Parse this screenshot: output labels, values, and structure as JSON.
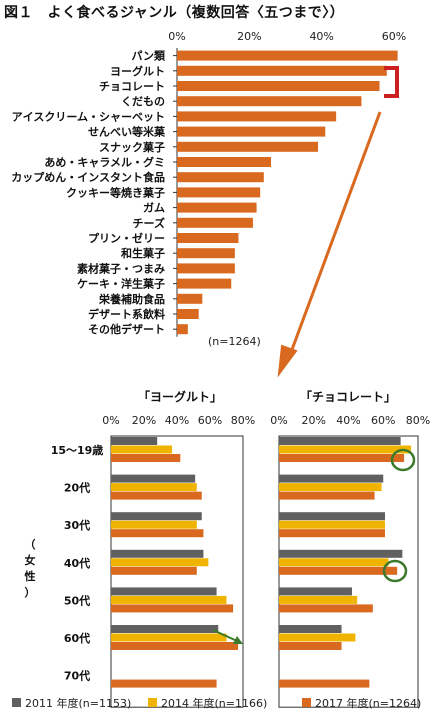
{
  "title": "図１　よく食べるジャンル（複数回答〈五つまで〉）",
  "colors": {
    "gray": "#606060",
    "yellow": "#f0b400",
    "orange": "#d9691e",
    "circle": "#3a7a2a",
    "arrow": "#d9691e",
    "bracket": "#cc2020"
  },
  "chart_data": [
    {
      "type": "bar",
      "orientation": "horizontal",
      "categories": [
        "パン類",
        "ヨーグルト",
        "チョコレート",
        "くだもの",
        "アイスクリーム・シャーベット",
        "せんべい等米菓",
        "スナック菓子",
        "あめ・キャラメル・グミ",
        "カップめん・インスタント食品",
        "クッキー等焼き菓子",
        "ガム",
        "チーズ",
        "プリン・ゼリー",
        "和生菓子",
        "素材菓子・つまみ",
        "ケーキ・洋生菓子",
        "栄養補助食品",
        "デザート系飲料",
        "その他デザート"
      ],
      "values": [
        61,
        58,
        56,
        51,
        44,
        41,
        39,
        26,
        24,
        23,
        22,
        21,
        17,
        16,
        16,
        15,
        7,
        6,
        3
      ],
      "xlim": [
        0,
        60
      ],
      "xticks": [
        "0%",
        "20%",
        "40%",
        "60%"
      ],
      "note": "(n=1264)"
    },
    {
      "type": "bar",
      "orientation": "horizontal",
      "title": "「ヨーグルト」",
      "categories": [
        "15～19歳",
        "20代",
        "30代",
        "40代",
        "50代",
        "60代",
        "70代"
      ],
      "xlim": [
        0,
        80
      ],
      "xticks": [
        "0%",
        "20%",
        "40%",
        "60%",
        "80%"
      ],
      "series": [
        {
          "name": "2011 年度(n=1153)",
          "values": [
            28,
            51,
            55,
            56,
            64,
            65,
            null
          ]
        },
        {
          "name": "2014 年度(n=1166)",
          "values": [
            37,
            52,
            52,
            59,
            70,
            70,
            null
          ]
        },
        {
          "name": "2017 年度(n=1264)",
          "values": [
            42,
            55,
            56,
            52,
            74,
            77,
            64
          ]
        }
      ]
    },
    {
      "type": "bar",
      "orientation": "horizontal",
      "title": "「チョコレート」",
      "categories": [
        "15～19歳",
        "20代",
        "30代",
        "40代",
        "50代",
        "60代",
        "70代"
      ],
      "xlim": [
        0,
        80
      ],
      "xticks": [
        "0%",
        "20%",
        "40%",
        "60%",
        "80%"
      ],
      "series": [
        {
          "name": "2011 年度(n=1153)",
          "values": [
            70,
            60,
            61,
            71,
            42,
            36,
            null
          ]
        },
        {
          "name": "2014 年度(n=1166)",
          "values": [
            76,
            59,
            61,
            63,
            45,
            44,
            null
          ]
        },
        {
          "name": "2017 年度(n=1264)",
          "values": [
            72,
            55,
            61,
            68,
            54,
            36,
            52
          ]
        }
      ]
    }
  ],
  "side_label": "（女性）",
  "legend": [
    "2011 年度(n=1153)",
    "2014 年度(n=1166)",
    "2017 年度(n=1264)"
  ]
}
